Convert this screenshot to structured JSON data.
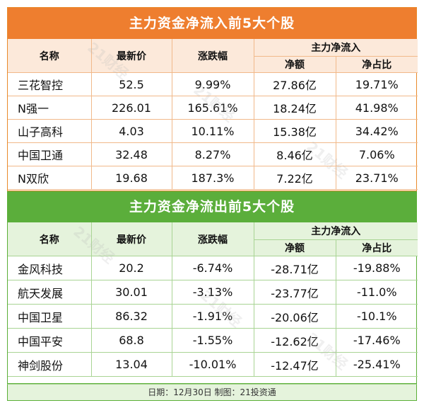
{
  "inflow": {
    "title": "主力资金净流入前5大个股",
    "headers": {
      "name": "名称",
      "price": "最新价",
      "change": "涨跌幅",
      "group": "主力净流入",
      "amount": "净额",
      "ratio": "净占比"
    },
    "rows": [
      {
        "name": "三花智控",
        "price": "52.5",
        "change": "9.99%",
        "amount": "27.86亿",
        "ratio": "19.71%"
      },
      {
        "name": "N强一",
        "price": "226.01",
        "change": "165.61%",
        "amount": "18.24亿",
        "ratio": "41.98%"
      },
      {
        "name": "山子高科",
        "price": "4.03",
        "change": "10.11%",
        "amount": "15.38亿",
        "ratio": "34.42%"
      },
      {
        "name": "中国卫通",
        "price": "32.48",
        "change": "8.27%",
        "amount": "8.46亿",
        "ratio": "7.06%"
      },
      {
        "name": "N双欣",
        "price": "19.68",
        "change": "187.3%",
        "amount": "7.22亿",
        "ratio": "23.71%"
      }
    ]
  },
  "outflow": {
    "title": "主力资金净流出前5大个股",
    "headers": {
      "name": "名称",
      "price": "最新价",
      "change": "涨跌幅",
      "group": "主力净流入",
      "amount": "净额",
      "ratio": "净占比"
    },
    "rows": [
      {
        "name": "金风科技",
        "price": "20.2",
        "change": "-6.74%",
        "amount": "-28.71亿",
        "ratio": "-19.88%"
      },
      {
        "name": "航天发展",
        "price": "30.01",
        "change": "-3.13%",
        "amount": "-23.77亿",
        "ratio": "-11.0%"
      },
      {
        "name": "中国卫星",
        "price": "86.32",
        "change": "-1.91%",
        "amount": "-20.06亿",
        "ratio": "-10.1%"
      },
      {
        "name": "中国平安",
        "price": "68.8",
        "change": "-1.55%",
        "amount": "-12.62亿",
        "ratio": "-17.46%"
      },
      {
        "name": "神剑股份",
        "price": "13.04",
        "change": "-10.01%",
        "amount": "-12.47亿",
        "ratio": "-25.41%"
      }
    ]
  },
  "footer": "日期：12月30日 制图：21投资通",
  "watermark": "21财经",
  "colors": {
    "inflow_banner": "#EE7E2F",
    "outflow_banner": "#5BAE3B",
    "inflow_header_bg": "#FCE9DA",
    "outflow_header_bg": "#E5F3DC"
  }
}
